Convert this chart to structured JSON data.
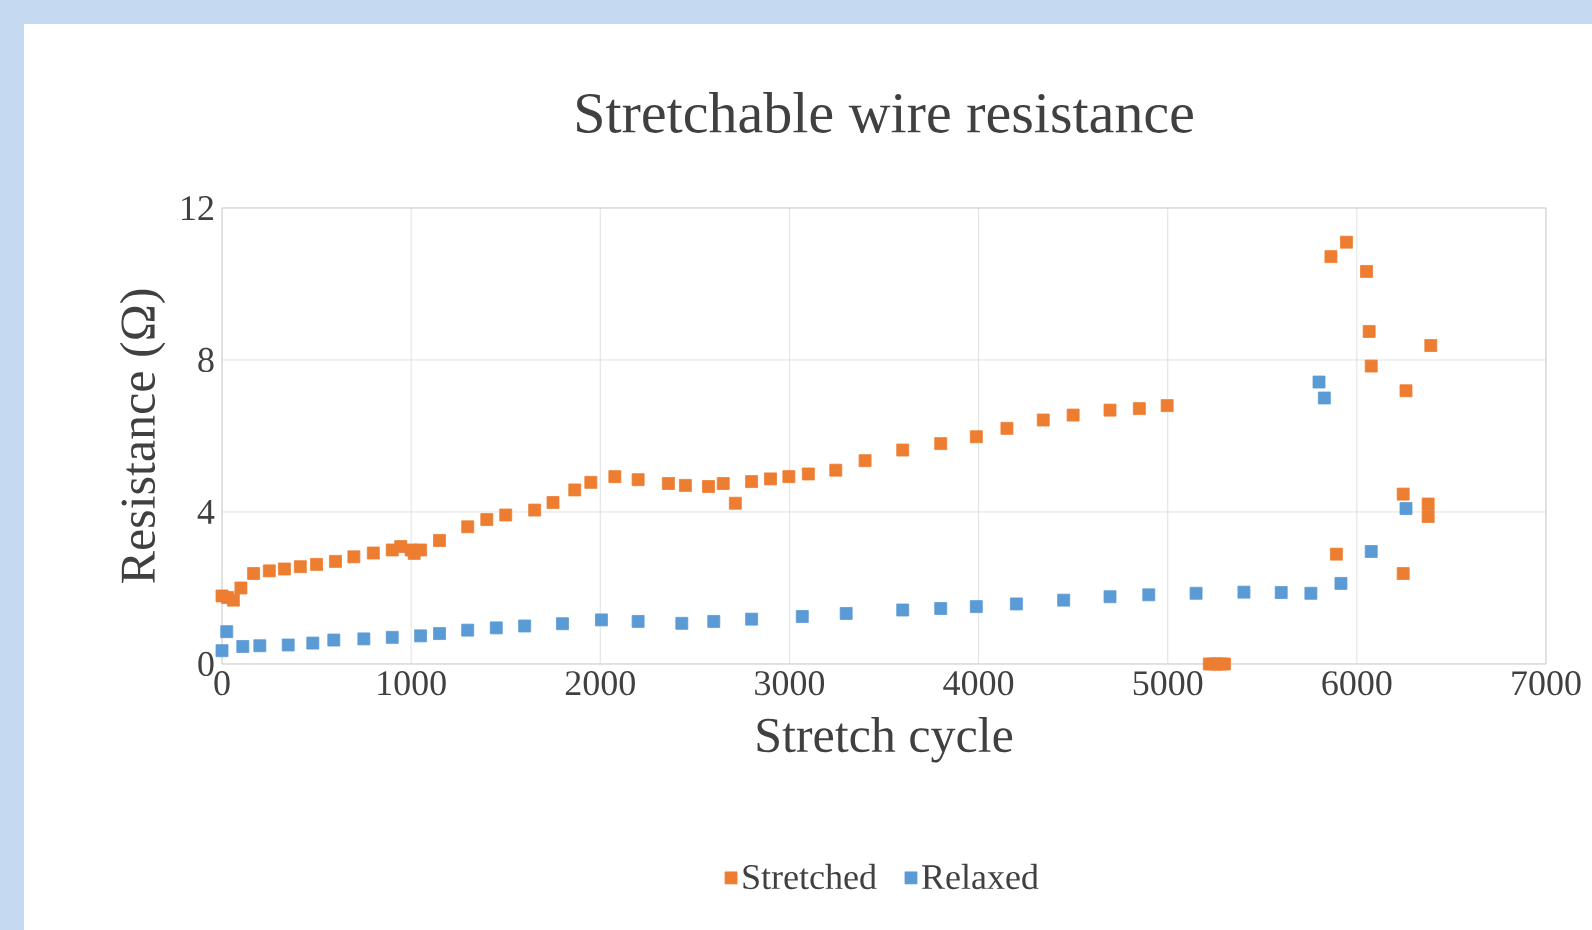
{
  "chart_data": {
    "type": "scatter",
    "title": "Stretchable wire resistance",
    "xlabel": "Stretch cycle",
    "ylabel": "Resistance (Ω)",
    "xlim": [
      0,
      7000
    ],
    "xticks": [
      0,
      1000,
      2000,
      3000,
      4000,
      5000,
      6000,
      7000
    ],
    "ylim": [
      0,
      12
    ],
    "yticks": [
      0,
      4,
      8,
      12
    ],
    "grid": true,
    "legend": "bottom",
    "marker": "square",
    "series": [
      {
        "name": "Stretched",
        "color": "#ed7d31",
        "x": [
          0,
          30,
          60,
          100,
          167,
          250,
          330,
          414,
          500,
          600,
          697,
          800,
          900,
          945,
          1000,
          1016,
          1050,
          1150,
          1299,
          1400,
          1500,
          1653,
          1750,
          1865,
          1950,
          2077,
          2200,
          2360,
          2450,
          2572,
          2714,
          2650,
          2800,
          2900,
          2997,
          3100,
          3245,
          3400,
          3599,
          3800,
          3988,
          4150,
          4342,
          4500,
          4695,
          4850,
          4997,
          5220,
          5240,
          5260,
          5280,
          5300,
          5863,
          5892,
          5945,
          6051,
          6065,
          6076,
          6245,
          6245,
          6260,
          6377,
          6377,
          6391
        ],
        "values": [
          1.79,
          1.75,
          1.68,
          2.0,
          2.38,
          2.45,
          2.5,
          2.56,
          2.62,
          2.7,
          2.82,
          2.92,
          3.0,
          3.09,
          3.0,
          2.91,
          3.0,
          3.25,
          3.61,
          3.8,
          3.92,
          4.05,
          4.25,
          4.58,
          4.78,
          4.93,
          4.85,
          4.75,
          4.7,
          4.67,
          4.23,
          4.75,
          4.8,
          4.87,
          4.93,
          5.0,
          5.1,
          5.35,
          5.63,
          5.8,
          5.98,
          6.2,
          6.42,
          6.55,
          6.68,
          6.72,
          6.8,
          0,
          0,
          0,
          0,
          0,
          10.72,
          2.89,
          11.1,
          10.33,
          8.75,
          7.84,
          4.47,
          2.38,
          7.19,
          4.21,
          3.88,
          8.38
        ]
      },
      {
        "name": "Relaxed",
        "color": "#5b9bd5",
        "x": [
          0,
          25,
          110,
          200,
          350,
          480,
          591,
          750,
          900,
          1050,
          1150,
          1299,
          1450,
          1600,
          1800,
          2006,
          2200,
          2431,
          2600,
          2800,
          3068,
          3300,
          3599,
          3800,
          3988,
          4200,
          4450,
          4695,
          4900,
          5150,
          5403,
          5600,
          5757,
          5800,
          5828,
          5916,
          6076,
          6260
        ],
        "values": [
          0.35,
          0.85,
          0.46,
          0.48,
          0.5,
          0.55,
          0.63,
          0.66,
          0.7,
          0.74,
          0.8,
          0.89,
          0.95,
          1.0,
          1.06,
          1.16,
          1.12,
          1.07,
          1.12,
          1.18,
          1.25,
          1.33,
          1.42,
          1.46,
          1.51,
          1.58,
          1.68,
          1.77,
          1.82,
          1.86,
          1.89,
          1.88,
          1.86,
          7.42,
          7.0,
          2.12,
          2.96,
          4.09
        ]
      }
    ]
  }
}
